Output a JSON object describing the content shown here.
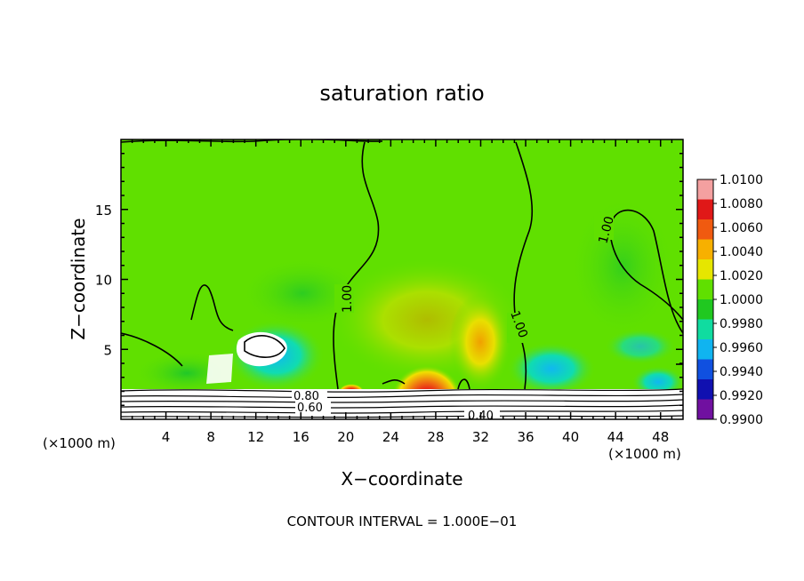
{
  "chart_data": {
    "type": "heatmap",
    "title": "saturation ratio",
    "xlabel": "X−coordinate",
    "ylabel": "Z−coordinate",
    "x_unit_left": "(×1000 m)",
    "x_unit_right": "(×1000 m)",
    "xlim": [
      0,
      50
    ],
    "ylim": [
      0,
      20
    ],
    "xticks": [
      4,
      8,
      12,
      16,
      20,
      24,
      28,
      32,
      36,
      40,
      44,
      48
    ],
    "yticks": [
      5,
      10,
      15
    ],
    "footer": "CONTOUR INTERVAL = 1.000E−01",
    "colorbar": {
      "labels": [
        "1.0100",
        "1.0080",
        "1.0060",
        "1.0040",
        "1.0020",
        "1.0000",
        "0.9980",
        "0.9960",
        "0.9940",
        "0.9920",
        "0.9900"
      ],
      "colors": [
        "#f4a0a0",
        "#e01818",
        "#f05a10",
        "#f7b000",
        "#e6e600",
        "#60e000",
        "#20c820",
        "#10dca0",
        "#10b4f0",
        "#1050e0",
        "#1010b0",
        "#7010a0"
      ]
    },
    "contour_labels": [
      "1.00",
      "1.00",
      "1.00",
      "0.80",
      "0.60",
      "0.40"
    ],
    "contour_interval": 0.1
  }
}
